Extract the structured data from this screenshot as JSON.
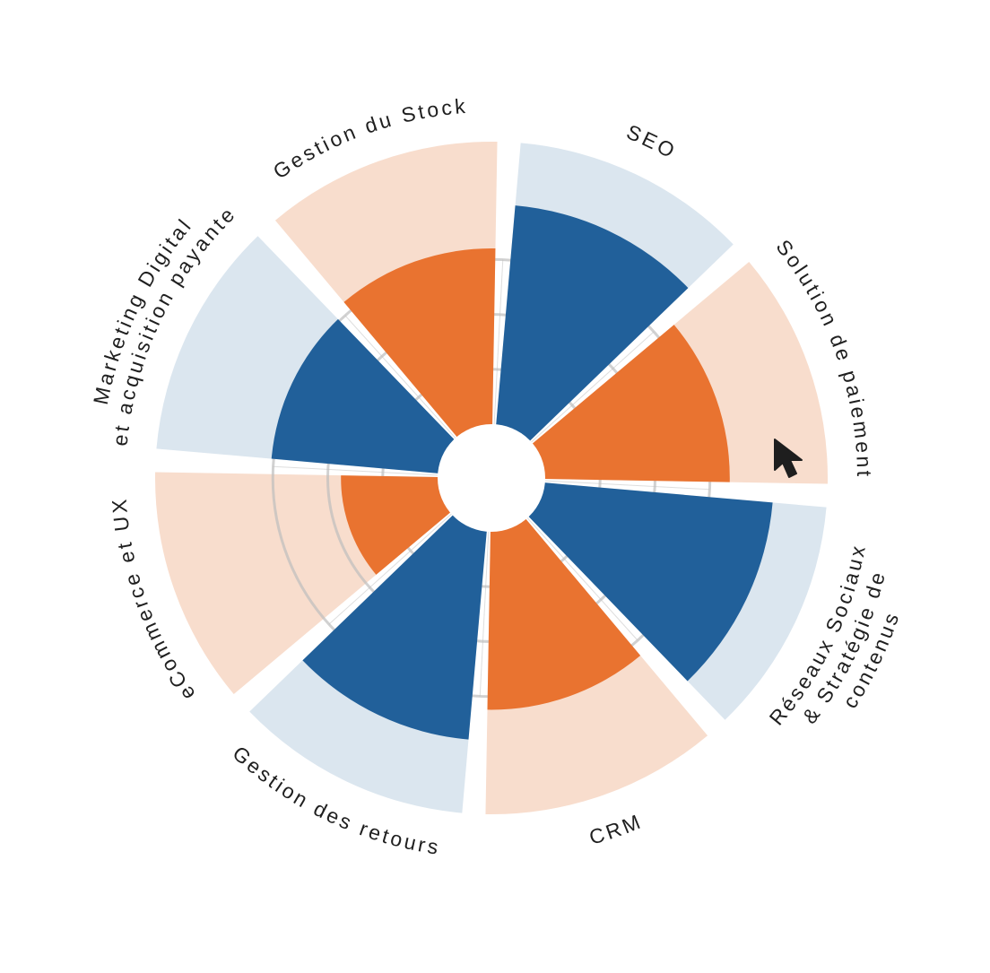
{
  "chart_data": {
    "type": "polar-bar",
    "max": 100,
    "rings": [
      25,
      50,
      75
    ],
    "grid": true,
    "colors": {
      "blue": "#21609a",
      "blue_bg": "#dbe6ef",
      "orange": "#e97330",
      "orange_bg": "#f8ddcd",
      "grid": "#bdbdbd"
    },
    "segments": [
      {
        "id": "marketing",
        "label_lines": [
          "Marketing  Digital",
          "et acquisition payante"
        ],
        "value": 76,
        "color": "blue"
      },
      {
        "id": "stock",
        "label_lines": [
          "Gestion du Stock"
        ],
        "value": 80,
        "color": "orange"
      },
      {
        "id": "seo",
        "label_lines": [
          "SEO"
        ],
        "value": 100,
        "color": "blue"
      },
      {
        "id": "paiement",
        "label_lines": [
          "Solution de paiement"
        ],
        "value": 84,
        "color": "orange"
      },
      {
        "id": "reseaux",
        "label_lines": [
          "Réseaux Sociaux",
          "& Stratégie de",
          "contenus"
        ],
        "value": 104,
        "color": "blue"
      },
      {
        "id": "crm",
        "label_lines": [
          "CRM"
        ],
        "value": 81,
        "color": "orange"
      },
      {
        "id": "retours",
        "label_lines": [
          "Gestion des retours"
        ],
        "value": 95,
        "color": "blue"
      },
      {
        "id": "ecommerce",
        "label_lines": [
          "eCommerce et UX"
        ],
        "value": 44,
        "color": "orange"
      }
    ]
  },
  "cursor": {
    "icon": "arrow-cursor-icon"
  }
}
